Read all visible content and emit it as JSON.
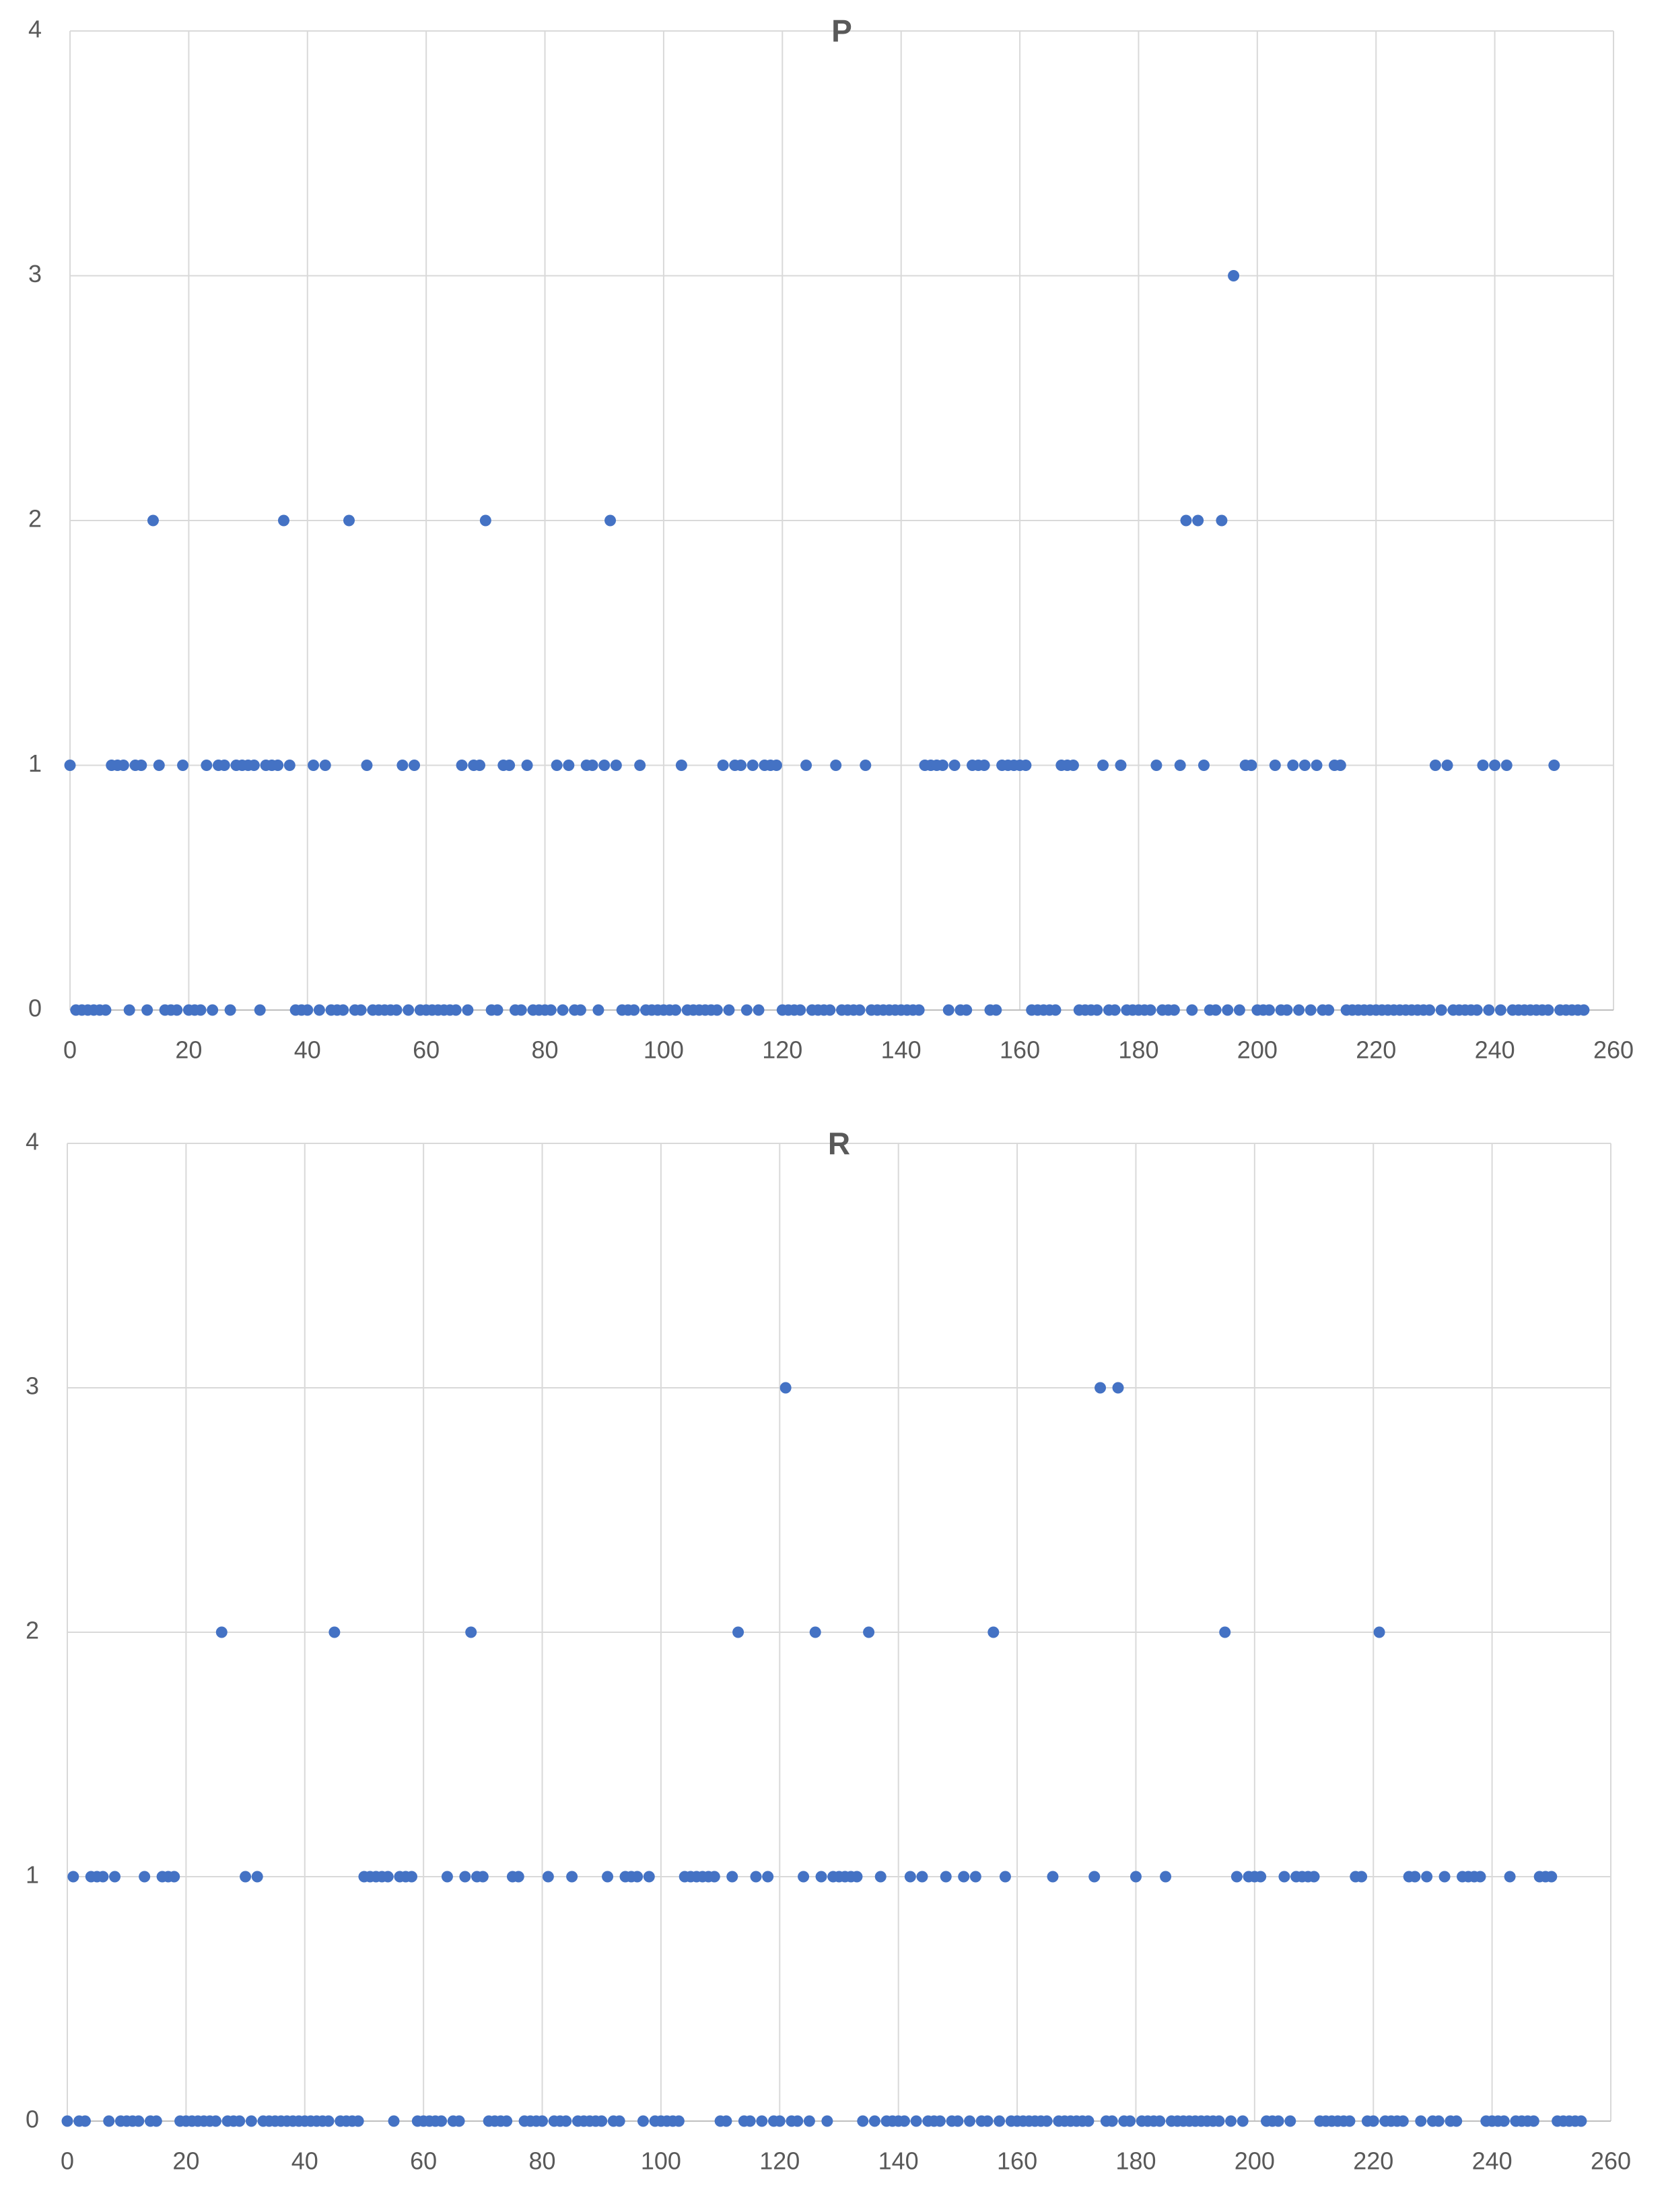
{
  "chart_data": [
    {
      "type": "scatter",
      "title": "P",
      "color": "#4472c4",
      "grid": true,
      "xlim": [
        0,
        260
      ],
      "xticks": [
        0,
        20,
        40,
        60,
        80,
        100,
        120,
        140,
        160,
        180,
        200,
        220,
        240,
        260
      ],
      "ylim": [
        0,
        4
      ],
      "yticks": [
        0,
        1,
        2,
        3,
        4
      ],
      "x": [
        0,
        1,
        2,
        3,
        4,
        5,
        6,
        7,
        8,
        9,
        10,
        11,
        12,
        13,
        14,
        15,
        16,
        17,
        18,
        19,
        20,
        21,
        22,
        23,
        24,
        25,
        26,
        27,
        28,
        29,
        30,
        31,
        32,
        33,
        34,
        35,
        36,
        37,
        38,
        39,
        40,
        41,
        42,
        43,
        44,
        45,
        46,
        47,
        48,
        49,
        50,
        51,
        52,
        53,
        54,
        55,
        56,
        57,
        58,
        59,
        60,
        61,
        62,
        63,
        64,
        65,
        66,
        67,
        68,
        69,
        70,
        71,
        72,
        73,
        74,
        75,
        76,
        77,
        78,
        79,
        80,
        81,
        82,
        83,
        84,
        85,
        86,
        87,
        88,
        89,
        90,
        91,
        92,
        93,
        94,
        95,
        96,
        97,
        98,
        99,
        100,
        101,
        102,
        103,
        104,
        105,
        106,
        107,
        108,
        109,
        110,
        111,
        112,
        113,
        114,
        115,
        116,
        117,
        118,
        119,
        120,
        121,
        122,
        123,
        124,
        125,
        126,
        127,
        128,
        129,
        130,
        131,
        132,
        133,
        134,
        135,
        136,
        137,
        138,
        139,
        140,
        141,
        142,
        143,
        144,
        145,
        146,
        147,
        148,
        149,
        150,
        151,
        152,
        153,
        154,
        155,
        156,
        157,
        158,
        159,
        160,
        161,
        162,
        163,
        164,
        165,
        166,
        167,
        168,
        169,
        170,
        171,
        172,
        173,
        174,
        175,
        176,
        177,
        178,
        179,
        180,
        181,
        182,
        183,
        184,
        185,
        186,
        187,
        188,
        189,
        190,
        191,
        192,
        193,
        194,
        195,
        196,
        197,
        198,
        199,
        200,
        201,
        202,
        203,
        204,
        205,
        206,
        207,
        208,
        209,
        210,
        211,
        212,
        213,
        214,
        215,
        216,
        217,
        218,
        219,
        220,
        221,
        222,
        223,
        224,
        225,
        226,
        227,
        228,
        229,
        230,
        231,
        232,
        233,
        234,
        235,
        236,
        237,
        238,
        239,
        240,
        241,
        242,
        243,
        244,
        245,
        246,
        247,
        248,
        249,
        250,
        251,
        252,
        253,
        254,
        255
      ],
      "values": [
        1,
        0,
        0,
        0,
        0,
        0,
        0,
        1,
        1,
        1,
        0,
        1,
        1,
        0,
        2,
        1,
        0,
        0,
        0,
        1,
        0,
        0,
        0,
        1,
        0,
        1,
        1,
        0,
        1,
        1,
        1,
        1,
        0,
        1,
        1,
        1,
        2,
        1,
        0,
        0,
        0,
        1,
        0,
        1,
        0,
        0,
        0,
        2,
        0,
        0,
        1,
        0,
        0,
        0,
        0,
        0,
        1,
        0,
        1,
        0,
        0,
        0,
        0,
        0,
        0,
        0,
        1,
        0,
        1,
        1,
        2,
        0,
        0,
        1,
        1,
        0,
        0,
        1,
        0,
        0,
        0,
        0,
        1,
        0,
        1,
        0,
        0,
        1,
        1,
        0,
        1,
        2,
        1,
        0,
        0,
        0,
        1,
        0,
        0,
        0,
        0,
        0,
        0,
        1,
        0,
        0,
        0,
        0,
        0,
        0,
        1,
        0,
        1,
        1,
        0,
        1,
        0,
        1,
        1,
        1,
        0,
        0,
        0,
        0,
        1,
        0,
        0,
        0,
        0,
        1,
        0,
        0,
        0,
        0,
        1,
        0,
        0,
        0,
        0,
        0,
        0,
        0,
        0,
        0,
        1,
        1,
        1,
        1,
        0,
        1,
        0,
        0,
        1,
        1,
        1,
        0,
        0,
        1,
        1,
        1,
        1,
        1,
        0,
        0,
        0,
        0,
        0,
        1,
        1,
        1,
        0,
        0,
        0,
        0,
        1,
        0,
        0,
        1,
        0,
        0,
        0,
        0,
        0,
        1,
        0,
        0,
        0,
        1,
        2,
        0,
        2,
        1,
        0,
        0,
        2,
        0,
        3,
        0,
        1,
        1,
        0,
        0,
        0,
        1,
        0,
        0,
        1,
        0,
        1,
        0,
        1,
        0,
        0,
        1,
        1,
        0,
        0,
        0,
        0,
        0,
        0,
        0,
        0,
        0,
        0,
        0,
        0,
        0,
        0,
        0,
        1,
        0,
        1,
        0,
        0,
        0,
        0,
        0,
        1,
        0,
        1,
        0,
        1,
        0,
        0,
        0,
        0,
        0,
        0,
        0,
        1,
        0,
        0,
        0,
        0,
        0
      ]
    },
    {
      "type": "scatter",
      "title": "R",
      "color": "#4472c4",
      "grid": true,
      "xlim": [
        0,
        260
      ],
      "xticks": [
        0,
        20,
        40,
        60,
        80,
        100,
        120,
        140,
        160,
        180,
        200,
        220,
        240,
        260
      ],
      "ylim": [
        0,
        4
      ],
      "yticks": [
        0,
        1,
        2,
        3,
        4
      ],
      "x": [
        0,
        1,
        2,
        3,
        4,
        5,
        6,
        7,
        8,
        9,
        10,
        11,
        12,
        13,
        14,
        15,
        16,
        17,
        18,
        19,
        20,
        21,
        22,
        23,
        24,
        25,
        26,
        27,
        28,
        29,
        30,
        31,
        32,
        33,
        34,
        35,
        36,
        37,
        38,
        39,
        40,
        41,
        42,
        43,
        44,
        45,
        46,
        47,
        48,
        49,
        50,
        51,
        52,
        53,
        54,
        55,
        56,
        57,
        58,
        59,
        60,
        61,
        62,
        63,
        64,
        65,
        66,
        67,
        68,
        69,
        70,
        71,
        72,
        73,
        74,
        75,
        76,
        77,
        78,
        79,
        80,
        81,
        82,
        83,
        84,
        85,
        86,
        87,
        88,
        89,
        90,
        91,
        92,
        93,
        94,
        95,
        96,
        97,
        98,
        99,
        100,
        101,
        102,
        103,
        104,
        105,
        106,
        107,
        108,
        109,
        110,
        111,
        112,
        113,
        114,
        115,
        116,
        117,
        118,
        119,
        120,
        121,
        122,
        123,
        124,
        125,
        126,
        127,
        128,
        129,
        130,
        131,
        132,
        133,
        134,
        135,
        136,
        137,
        138,
        139,
        140,
        141,
        142,
        143,
        144,
        145,
        146,
        147,
        148,
        149,
        150,
        151,
        152,
        153,
        154,
        155,
        156,
        157,
        158,
        159,
        160,
        161,
        162,
        163,
        164,
        165,
        166,
        167,
        168,
        169,
        170,
        171,
        172,
        173,
        174,
        175,
        176,
        177,
        178,
        179,
        180,
        181,
        182,
        183,
        184,
        185,
        186,
        187,
        188,
        189,
        190,
        191,
        192,
        193,
        194,
        195,
        196,
        197,
        198,
        199,
        200,
        201,
        202,
        203,
        204,
        205,
        206,
        207,
        208,
        209,
        210,
        211,
        212,
        213,
        214,
        215,
        216,
        217,
        218,
        219,
        220,
        221,
        222,
        223,
        224,
        225,
        226,
        227,
        228,
        229,
        230,
        231,
        232,
        233,
        234,
        235,
        236,
        237,
        238,
        239,
        240,
        241,
        242,
        243,
        244,
        245,
        246,
        247,
        248,
        249,
        250,
        251,
        252,
        253,
        254,
        255
      ],
      "values": [
        0,
        1,
        0,
        0,
        1,
        1,
        1,
        0,
        1,
        0,
        0,
        0,
        0,
        1,
        0,
        0,
        1,
        1,
        1,
        0,
        0,
        0,
        0,
        0,
        0,
        0,
        2,
        0,
        0,
        0,
        1,
        0,
        1,
        0,
        0,
        0,
        0,
        0,
        0,
        0,
        0,
        0,
        0,
        0,
        0,
        2,
        0,
        0,
        0,
        0,
        1,
        1,
        1,
        1,
        1,
        0,
        1,
        1,
        1,
        0,
        0,
        0,
        0,
        0,
        1,
        0,
        0,
        1,
        2,
        1,
        1,
        0,
        0,
        0,
        0,
        1,
        1,
        0,
        0,
        0,
        0,
        1,
        0,
        0,
        0,
        1,
        0,
        0,
        0,
        0,
        0,
        1,
        0,
        0,
        1,
        1,
        1,
        0,
        1,
        0,
        0,
        0,
        0,
        0,
        1,
        1,
        1,
        1,
        1,
        1,
        0,
        0,
        1,
        2,
        0,
        0,
        1,
        0,
        1,
        0,
        0,
        3,
        0,
        0,
        1,
        0,
        2,
        1,
        0,
        1,
        1,
        1,
        1,
        1,
        0,
        2,
        0,
        1,
        0,
        0,
        0,
        0,
        1,
        0,
        1,
        0,
        0,
        0,
        1,
        0,
        0,
        1,
        0,
        1,
        0,
        0,
        2,
        0,
        1,
        0,
        0,
        0,
        0,
        0,
        0,
        0,
        1,
        0,
        0,
        0,
        0,
        0,
        0,
        1,
        3,
        0,
        0,
        3,
        0,
        0,
        1,
        0,
        0,
        0,
        0,
        1,
        0,
        0,
        0,
        0,
        0,
        0,
        0,
        0,
        0,
        2,
        0,
        1,
        0,
        1,
        1,
        1,
        0,
        0,
        0,
        1,
        0,
        1,
        1,
        1,
        1,
        0,
        0,
        0,
        0,
        0,
        0,
        1,
        1,
        0,
        0,
        2,
        0,
        0,
        0,
        0,
        1,
        1,
        0,
        1,
        0,
        0,
        1,
        0,
        0,
        1,
        1,
        1,
        1,
        0,
        0,
        0,
        0,
        1,
        0,
        0,
        0,
        0,
        1,
        1,
        1,
        0,
        0,
        0,
        0,
        0
      ]
    }
  ]
}
